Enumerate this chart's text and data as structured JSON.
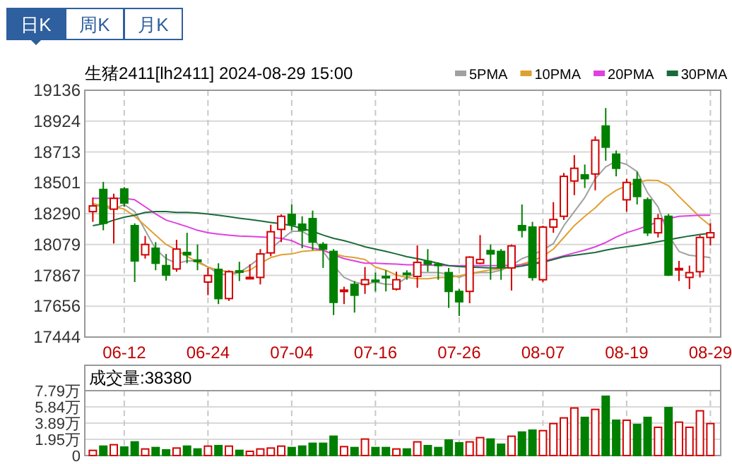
{
  "chart_data": [
    {
      "type": "candlestick",
      "title": "生猪2411[lh2411] 2024-08-29 15:00",
      "annotations": [
        "日K",
        "周K",
        "月K"
      ],
      "categories": [
        null,
        null,
        null,
        "06-12",
        null,
        null,
        null,
        null,
        null,
        null,
        null,
        "06-24",
        null,
        null,
        null,
        null,
        null,
        null,
        null,
        "07-04",
        null,
        null,
        null,
        null,
        null,
        null,
        null,
        "07-16",
        null,
        null,
        null,
        null,
        null,
        null,
        null,
        "07-26",
        null,
        null,
        null,
        null,
        null,
        null,
        null,
        "08-07",
        null,
        null,
        null,
        null,
        null,
        null,
        null,
        "08-19",
        null,
        null,
        null,
        null,
        null,
        null,
        null,
        "08-29"
      ],
      "ohlc": [
        [
          18304,
          18401,
          18234,
          18343
        ],
        [
          18456,
          18508,
          18176,
          18224
        ],
        [
          18321,
          18427,
          18085,
          18395
        ],
        [
          18459,
          18472,
          18337,
          18363
        ],
        [
          18208,
          18224,
          17821,
          17966
        ],
        [
          18008,
          18137,
          17982,
          18079
        ],
        [
          18053,
          18095,
          17902,
          17950
        ],
        [
          17934,
          18014,
          17831,
          17869
        ],
        [
          17911,
          18111,
          17892,
          18047
        ],
        [
          18024,
          18159,
          17950,
          18008
        ],
        [
          17972,
          18079,
          17902,
          17962
        ],
        [
          17821,
          17918,
          17731,
          17866
        ],
        [
          17908,
          17950,
          17670,
          17708
        ],
        [
          17708,
          17902,
          17692,
          17892
        ],
        [
          17898,
          17960,
          17828,
          17892
        ],
        [
          17844,
          17943,
          17844,
          17853
        ],
        [
          17853,
          18047,
          17805,
          18014
        ],
        [
          18021,
          18214,
          17998,
          18166
        ],
        [
          18182,
          18285,
          18095,
          18272
        ],
        [
          18285,
          18353,
          18176,
          18214
        ],
        [
          18218,
          18272,
          18053,
          18176
        ],
        [
          18256,
          18311,
          18040,
          18095
        ],
        [
          18079,
          18095,
          17918,
          18047
        ],
        [
          18031,
          18047,
          17595,
          17682
        ],
        [
          17757,
          17789,
          17670,
          17766
        ],
        [
          17805,
          17828,
          17612,
          17731
        ],
        [
          17805,
          17924,
          17740,
          17837
        ],
        [
          17834,
          17886,
          17757,
          17828
        ],
        [
          17860,
          17902,
          17757,
          17853
        ],
        [
          17773,
          17892,
          17763,
          17837
        ],
        [
          17882,
          17902,
          17837,
          17876
        ],
        [
          17860,
          18072,
          17782,
          17956
        ],
        [
          17963,
          18047,
          17892,
          17944
        ],
        [
          17944,
          17956,
          17837,
          17937
        ],
        [
          17886,
          17918,
          17644,
          17757
        ],
        [
          17757,
          17773,
          17589,
          17686
        ],
        [
          17757,
          17998,
          17676,
          17992
        ],
        [
          17950,
          18143,
          17944,
          17976
        ],
        [
          18037,
          18079,
          17837,
          18014
        ],
        [
          18031,
          18047,
          17837,
          17924
        ],
        [
          17918,
          18079,
          17763,
          18069
        ],
        [
          18208,
          18353,
          18127,
          18176
        ],
        [
          18198,
          18234,
          17831,
          17853
        ],
        [
          17837,
          18208,
          17821,
          18198
        ],
        [
          18198,
          18369,
          18159,
          18250
        ],
        [
          18272,
          18569,
          18247,
          18546
        ],
        [
          18514,
          18691,
          18417,
          18601
        ],
        [
          18556,
          18627,
          18466,
          18530
        ],
        [
          18562,
          18820,
          18450,
          18794
        ],
        [
          18891,
          19014,
          18653,
          18746
        ],
        [
          18698,
          18723,
          18546,
          18601
        ],
        [
          18385,
          18530,
          18304,
          18504
        ],
        [
          18524,
          18578,
          18353,
          18408
        ],
        [
          18385,
          18401,
          18137,
          18159
        ],
        [
          18159,
          18288,
          18127,
          18256
        ],
        [
          18272,
          18288,
          17863,
          17869
        ],
        [
          17908,
          17966,
          17828,
          17914
        ],
        [
          17853,
          17934,
          17773,
          17886
        ],
        [
          17892,
          18143,
          17853,
          18127
        ],
        [
          18127,
          18224,
          18072,
          18159
        ]
      ],
      "colors": [
        "#d20000",
        "#008000",
        "#d20000",
        "#008000",
        "#008000",
        "#d20000",
        "#008000",
        "#008000",
        "#d20000",
        "#008000",
        "#008000",
        "#d20000",
        "#008000",
        "#d20000",
        "#008000",
        "#d20000",
        "#d20000",
        "#d20000",
        "#d20000",
        "#008000",
        "#008000",
        "#008000",
        "#008000",
        "#008000",
        "#d20000",
        "#008000",
        "#d20000",
        "#008000",
        "#008000",
        "#d20000",
        "#008000",
        "#d20000",
        "#008000",
        "#008000",
        "#008000",
        "#008000",
        "#d20000",
        "#d20000",
        "#008000",
        "#008000",
        "#d20000",
        "#008000",
        "#008000",
        "#d20000",
        "#d20000",
        "#d20000",
        "#d20000",
        "#008000",
        "#d20000",
        "#008000",
        "#008000",
        "#d20000",
        "#008000",
        "#008000",
        "#d20000",
        "#008000",
        "#d20000",
        "#d20000",
        "#d20000",
        "#d20000"
      ],
      "series": [
        {
          "type": "line",
          "name": "5PMA",
          "color": "#a0a0a0",
          "values": [
            18353,
            18337,
            18321,
            18353,
            18304,
            18176,
            18047,
            17982,
            17950,
            17966,
            17966,
            17924,
            17879,
            17869,
            17886,
            17934,
            17989,
            18047,
            18111,
            18169,
            18169,
            18127,
            18031,
            17934,
            17853,
            17821,
            17805,
            17821,
            17805,
            17805,
            17853,
            17886,
            17886,
            17886,
            17876,
            17853,
            17879,
            17886,
            17886,
            17902,
            17934,
            17982,
            18008,
            18040,
            18085,
            18208,
            18304,
            18401,
            18530,
            18611,
            18649,
            18627,
            18578,
            18433,
            18337,
            18143,
            18031,
            18005,
            17998,
            17989
          ]
        },
        {
          "type": "line",
          "name": "10PMA",
          "color": "#e0a030",
          "values": [
            18359,
            18343,
            18337,
            18321,
            18272,
            18208,
            18143,
            18079,
            18040,
            17998,
            17956,
            17924,
            17902,
            17892,
            17886,
            17902,
            17950,
            17989,
            18008,
            18014,
            18031,
            18037,
            18040,
            18014,
            17998,
            17989,
            17976,
            17924,
            17902,
            17869,
            17853,
            17844,
            17844,
            17853,
            17853,
            17863,
            17879,
            17892,
            17905,
            17911,
            17924,
            17944,
            17966,
            17998,
            18047,
            18127,
            18208,
            18272,
            18330,
            18401,
            18450,
            18482,
            18504,
            18520,
            18517,
            18482,
            18408,
            18337,
            18266,
            18208
          ]
        },
        {
          "type": "line",
          "name": "20PMA",
          "color": "#e040e0",
          "values": [
            18395,
            18395,
            18395,
            18395,
            18385,
            18337,
            18288,
            18246,
            18224,
            18201,
            18176,
            18160,
            18150,
            18143,
            18137,
            18134,
            18130,
            18127,
            18121,
            18105,
            18072,
            18053,
            18040,
            18008,
            17982,
            17966,
            17950,
            17950,
            17947,
            17944,
            17940,
            17940,
            17937,
            17937,
            17934,
            17934,
            17934,
            17934,
            17934,
            17934,
            17937,
            17940,
            17950,
            17963,
            17982,
            18001,
            18021,
            18040,
            18063,
            18092,
            18130,
            18160,
            18182,
            18208,
            18234,
            18256,
            18272,
            18275,
            18279,
            18279
          ]
        },
        {
          "type": "line",
          "name": "30PMA",
          "color": "#1a6b3a",
          "values": [
            18208,
            18221,
            18246,
            18266,
            18279,
            18298,
            18304,
            18304,
            18298,
            18298,
            18295,
            18288,
            18279,
            18269,
            18259,
            18250,
            18240,
            18230,
            18221,
            18208,
            18188,
            18169,
            18143,
            18121,
            18105,
            18085,
            18063,
            18047,
            18031,
            18014,
            17995,
            17982,
            17966,
            17950,
            17934,
            17928,
            17924,
            17921,
            17918,
            17918,
            17921,
            17931,
            17944,
            17956,
            17976,
            17995,
            18005,
            18014,
            18024,
            18040,
            18053,
            18063,
            18072,
            18085,
            18098,
            18111,
            18124,
            18137,
            18147,
            18156
          ]
        }
      ],
      "ylim": [
        17444,
        19136
      ],
      "yticks": [
        19136,
        18924,
        18713,
        18501,
        18290,
        18079,
        17867,
        17656,
        17444
      ],
      "grid": true,
      "legend": "top right"
    },
    {
      "type": "bar",
      "title": "成交量:38380",
      "tick_labels": "y",
      "categories": [
        null,
        null,
        null,
        null,
        null,
        null,
        null,
        null,
        null,
        null,
        null,
        null,
        null,
        null,
        null,
        null,
        null,
        null,
        null,
        null,
        null,
        null,
        null,
        null,
        null,
        null,
        null,
        null,
        null,
        null,
        null,
        null,
        null,
        null,
        null,
        null,
        null,
        null,
        null,
        null,
        null,
        null,
        null,
        null,
        null,
        null,
        null,
        null,
        null,
        null,
        null,
        null,
        null,
        null,
        null,
        null,
        null,
        null,
        null,
        null
      ],
      "values": [
        0.62,
        1.13,
        1.3,
        1.02,
        1.64,
        0.79,
        0.96,
        0.68,
        0.9,
        1.13,
        0.79,
        1.13,
        1.19,
        1.13,
        0.62,
        0.51,
        0.79,
        0.9,
        1.13,
        0.96,
        1.13,
        1.47,
        1.47,
        2.32,
        1.07,
        0.96,
        1.98,
        0.96,
        0.96,
        0.79,
        0.79,
        1.64,
        1.19,
        0.96,
        1.86,
        1.53,
        1.64,
        2.15,
        1.98,
        1.36,
        2.32,
        2.82,
        3.05,
        2.99,
        3.84,
        4.52,
        5.71,
        4.58,
        5.54,
        7.12,
        4.24,
        4.24,
        3.73,
        4.58,
        3.39,
        5.76,
        4.01,
        3.39,
        5.37,
        3.838
      ],
      "colors": [
        "#d20000",
        "#008000",
        "#d20000",
        "#008000",
        "#008000",
        "#d20000",
        "#008000",
        "#008000",
        "#d20000",
        "#008000",
        "#008000",
        "#d20000",
        "#008000",
        "#d20000",
        "#008000",
        "#d20000",
        "#d20000",
        "#d20000",
        "#d20000",
        "#008000",
        "#008000",
        "#008000",
        "#008000",
        "#008000",
        "#d20000",
        "#008000",
        "#d20000",
        "#008000",
        "#008000",
        "#d20000",
        "#008000",
        "#d20000",
        "#008000",
        "#008000",
        "#008000",
        "#008000",
        "#d20000",
        "#d20000",
        "#008000",
        "#008000",
        "#d20000",
        "#008000",
        "#008000",
        "#d20000",
        "#d20000",
        "#d20000",
        "#d20000",
        "#008000",
        "#d20000",
        "#008000",
        "#008000",
        "#d20000",
        "#008000",
        "#008000",
        "#d20000",
        "#008000",
        "#d20000",
        "#d20000",
        "#d20000",
        "#d20000"
      ],
      "ylim": [
        0,
        7.79
      ],
      "yticks": [
        {
          "value": 0,
          "label": "0"
        },
        {
          "value": 1.95,
          "label": "1.95万"
        },
        {
          "value": 3.89,
          "label": "3.89万"
        },
        {
          "value": 5.84,
          "label": "5.84万"
        },
        {
          "value": 7.79,
          "label": "7.79万"
        }
      ],
      "grid": true
    }
  ]
}
